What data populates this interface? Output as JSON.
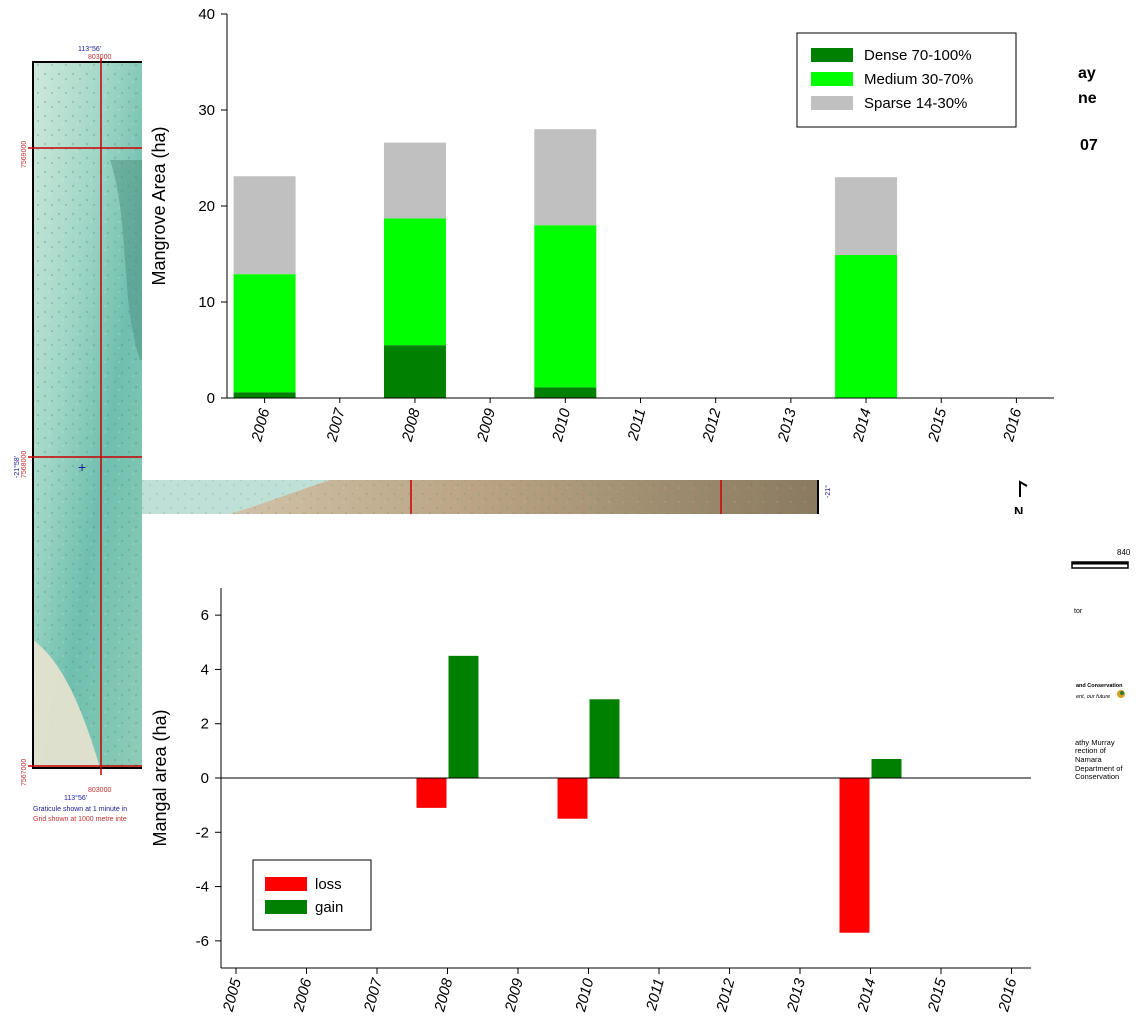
{
  "colors": {
    "dense": "#008000",
    "medium": "#00ff00",
    "sparse": "#c0c0c0",
    "loss": "#ff0000",
    "gain": "#008000",
    "map_grid": "#cc0000",
    "map_label_blue": "#1a1a9a",
    "map_label_red": "#c03030"
  },
  "map": {
    "top_lon_label": "113°56'",
    "top_easting_label": "803000",
    "bottom_lon_label": "113°56'",
    "bottom_easting_label": "803000",
    "northing_top": "7569000",
    "northing_mid": "7568000",
    "northing_bottom": "7567000",
    "lat_mid": "-21°58'",
    "right_lat": "-21°",
    "graticule_note": "Graticule shown at 1 minute in",
    "grid_note": "Grid shown at 1000 metre inte",
    "title_fragments": [
      "ay",
      "ne",
      "07"
    ],
    "north_arrow_label": "N",
    "scale_number": "840",
    "side_text_1": "tor",
    "logo_line_1": "and Conservation",
    "logo_line_2": "ent, our future",
    "credits": [
      "athy Murray",
      "rection of",
      "Namara",
      "Department of",
      "Conservation"
    ]
  },
  "chart_data": [
    {
      "type": "bar",
      "stacked": true,
      "categories": [
        "2006",
        "2007",
        "2008",
        "2009",
        "2010",
        "2011",
        "2012",
        "2013",
        "2014",
        "2015",
        "2016"
      ],
      "series": [
        {
          "name": "Dense 70-100%",
          "color_key": "dense",
          "values": [
            0.6,
            0,
            5.5,
            0,
            1.1,
            0,
            0,
            0,
            0,
            0,
            0
          ]
        },
        {
          "name": "Medium 30-70%",
          "color_key": "medium",
          "values": [
            12.3,
            0,
            13.2,
            0,
            16.9,
            0,
            0,
            0,
            14.9,
            0,
            0
          ]
        },
        {
          "name": "Sparse 14-30%",
          "color_key": "sparse",
          "values": [
            10.2,
            0,
            7.9,
            0,
            10.0,
            0,
            0,
            0,
            8.1,
            0,
            0
          ]
        }
      ],
      "ylabel": "Mangrove Area (ha)",
      "xlabel": "",
      "ylim": [
        0,
        40
      ],
      "yticks": [
        "0",
        "10",
        "20",
        "30",
        "40"
      ],
      "legend_position": "top-right",
      "grid": false
    },
    {
      "type": "bar",
      "categories": [
        "2005",
        "2006",
        "2007",
        "2008",
        "2009",
        "2010",
        "2011",
        "2012",
        "2013",
        "2014",
        "2015",
        "2016"
      ],
      "series": [
        {
          "name": "loss",
          "color_key": "loss",
          "values": [
            0,
            0,
            0,
            -1.1,
            0,
            -1.5,
            0,
            0,
            0,
            -5.7,
            0,
            0
          ]
        },
        {
          "name": "gain",
          "color_key": "gain",
          "values": [
            0,
            0,
            0,
            4.5,
            0,
            2.9,
            0,
            0,
            0,
            0.7,
            0,
            0
          ]
        }
      ],
      "ylabel": "Mangal area (ha)",
      "xlabel": "",
      "ylim": [
        -7,
        7
      ],
      "yticks": [
        "-6",
        "-4",
        "-2",
        "0",
        "2",
        "4",
        "6"
      ],
      "legend_position": "bottom-left",
      "grid": false
    }
  ]
}
